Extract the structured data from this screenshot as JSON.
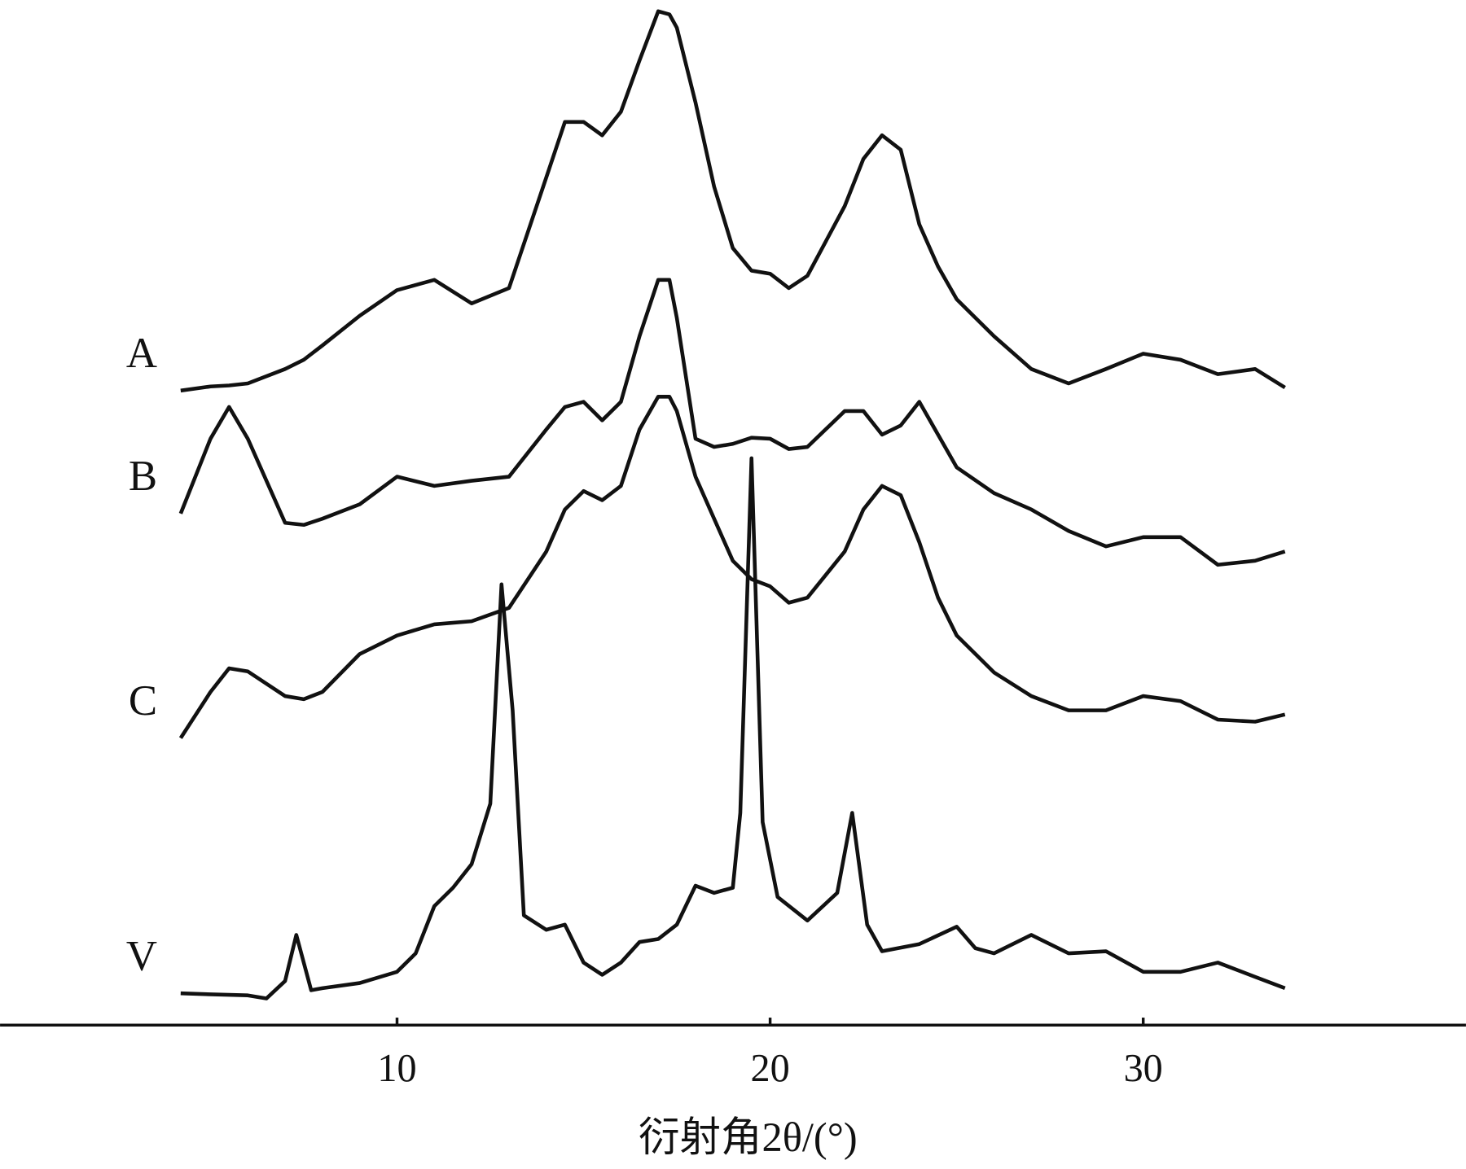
{
  "chart_data": {
    "type": "line",
    "xlabel": "衍射角2θ/(°)",
    "xlim": [
      -0.64,
      38.65
    ],
    "xticks": [
      10,
      20,
      30
    ],
    "ylim": [
      0,
      100
    ],
    "x": [
      4.2,
      5,
      5.5,
      6,
      7,
      7.5,
      8,
      9,
      10,
      11,
      12,
      13,
      14,
      14.5,
      15,
      15.5,
      16,
      16.5,
      17,
      17.3,
      17.5,
      18,
      18.5,
      19,
      19.5,
      20,
      20.5,
      21,
      22,
      22.5,
      23,
      23.5,
      24,
      24.5,
      25,
      26,
      27,
      28,
      29,
      30,
      31,
      32,
      33,
      33.8
    ],
    "series": [
      {
        "name": "A",
        "color": "#111111",
        "values": [
          61.9,
          62.3,
          62.4,
          62.6,
          64.0,
          64.9,
          66.3,
          69.2,
          71.7,
          72.7,
          70.4,
          71.9,
          82.7,
          88.1,
          88.1,
          86.8,
          89.1,
          94.1,
          98.9,
          98.6,
          97.3,
          90.0,
          81.8,
          75.8,
          73.6,
          73.3,
          71.9,
          73.1,
          79.9,
          84.5,
          86.8,
          85.4,
          78.1,
          74.0,
          70.8,
          67.2,
          64.0,
          62.6,
          64.0,
          65.5,
          64.9,
          63.5,
          64.0,
          62.2
        ]
      },
      {
        "name": "B",
        "color": "#111111",
        "values": [
          49.9,
          57.2,
          60.3,
          57.2,
          49.0,
          48.8,
          49.4,
          50.8,
          53.5,
          52.6,
          53.1,
          53.5,
          58.1,
          60.3,
          60.8,
          59.0,
          60.8,
          67.2,
          72.7,
          72.7,
          69.0,
          57.2,
          56.4,
          56.7,
          57.3,
          57.2,
          56.2,
          56.4,
          59.9,
          59.9,
          57.6,
          58.5,
          60.8,
          57.6,
          54.4,
          51.9,
          50.3,
          48.2,
          46.7,
          47.6,
          47.6,
          44.9,
          45.3,
          46.2
        ]
      },
      {
        "name": "C",
        "color": "#111111",
        "values": [
          28.0,
          32.5,
          34.8,
          34.5,
          32.1,
          31.8,
          32.5,
          36.2,
          38.0,
          39.1,
          39.4,
          40.7,
          46.2,
          50.3,
          52.1,
          51.2,
          52.6,
          58.1,
          61.3,
          61.3,
          59.9,
          53.5,
          49.4,
          45.3,
          43.5,
          42.8,
          41.2,
          41.7,
          46.2,
          50.3,
          52.6,
          51.7,
          47.1,
          41.7,
          38.0,
          34.4,
          32.1,
          30.7,
          30.7,
          32.1,
          31.6,
          29.8,
          29.6,
          30.3
        ]
      },
      {
        "name": "V",
        "color": "#111111",
        "x": [
          4.2,
          5,
          6,
          6.5,
          7,
          7.3,
          7.7,
          8,
          9,
          10,
          10.5,
          11,
          11.5,
          12,
          12.5,
          12.8,
          13.1,
          13.4,
          14,
          14.5,
          15,
          15.5,
          16,
          16.5,
          17,
          17.5,
          18,
          18.5,
          19,
          19.2,
          19.5,
          19.8,
          20.2,
          21,
          21.8,
          22.2,
          22.6,
          23,
          24,
          25,
          25.5,
          26,
          27,
          28,
          29,
          30,
          31,
          32,
          33,
          33.8
        ],
        "values": [
          3.1,
          3.0,
          2.9,
          2.6,
          4.3,
          8.8,
          3.4,
          3.6,
          4.1,
          5.2,
          7.0,
          11.6,
          13.4,
          15.7,
          21.6,
          43.0,
          30.7,
          10.7,
          9.3,
          9.8,
          6.1,
          4.9,
          6.1,
          8.1,
          8.4,
          9.8,
          13.6,
          12.9,
          13.4,
          20.7,
          55.3,
          19.8,
          12.5,
          10.2,
          12.9,
          20.7,
          9.8,
          7.2,
          7.9,
          9.6,
          7.5,
          7.0,
          8.8,
          7.0,
          7.2,
          5.2,
          5.2,
          6.1,
          4.7,
          3.6
        ]
      }
    ]
  }
}
